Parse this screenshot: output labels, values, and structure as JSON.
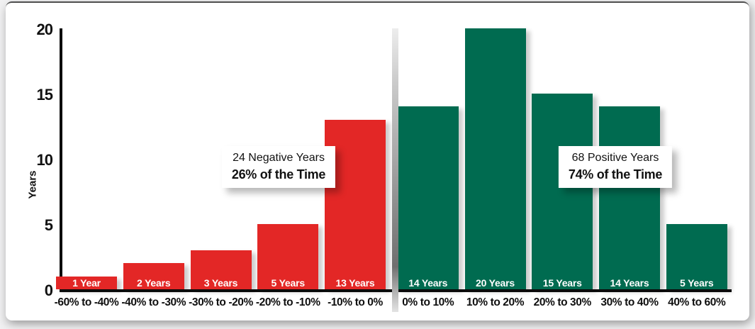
{
  "page": {
    "background": "#f1f1f2",
    "card_background": "#ffffff",
    "card_top_border_color": "#4f4f4f"
  },
  "chart_data": {
    "type": "bar",
    "title": "",
    "xlabel": "",
    "ylabel": "Years",
    "ylim": [
      0,
      20
    ],
    "yticks": [
      0,
      5,
      10,
      15,
      20
    ],
    "grid": false,
    "legend": false,
    "categories": [
      "-60% to -40%",
      "-40% to -30%",
      "-30% to -20%",
      "-20% to -10%",
      "-10% to 0%",
      "0% to 10%",
      "10% to 20%",
      "20% to 30%",
      "30% to 40%",
      "40% to 60%"
    ],
    "values": [
      1,
      2,
      3,
      5,
      13,
      14,
      20,
      15,
      14,
      5
    ],
    "bar_labels": [
      "1 Year",
      "2 Years",
      "3 Years",
      "5 Years",
      "13 Years",
      "14 Years",
      "20 Years",
      "15 Years",
      "14 Years",
      "5 Years"
    ],
    "bar_colors": [
      "#e32726",
      "#e32726",
      "#e32726",
      "#e32726",
      "#e32726",
      "#006b50",
      "#006b50",
      "#006b50",
      "#006b50",
      "#006b50"
    ],
    "negative_color": "#e32726",
    "positive_color": "#006b50",
    "divider_after_index": 4,
    "divider_color_mid": "#8a8a8a",
    "annotations": [
      {
        "line1": "24 Negative Years",
        "line2": "26% of the Time",
        "anchor": "negative-side"
      },
      {
        "line1": "68 Positive Years",
        "line2": "74% of the Time",
        "anchor": "positive-side"
      }
    ]
  }
}
